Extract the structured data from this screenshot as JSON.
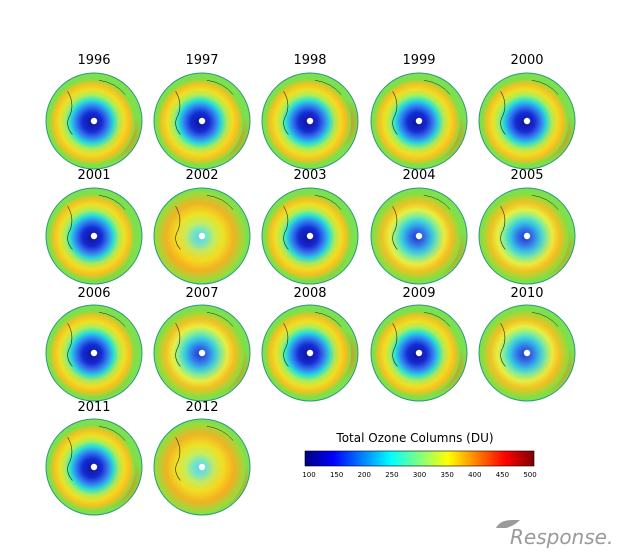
{
  "panels": [
    {
      "year": "1996",
      "hole": "large",
      "hole_color": "#1432e6",
      "high_sector": "lower-right"
    },
    {
      "year": "1997",
      "hole": "large",
      "hole_color": "#1432e6",
      "high_sector": "lower-right"
    },
    {
      "year": "1998",
      "hole": "large",
      "hole_color": "#0a1ee0",
      "high_sector": "right"
    },
    {
      "year": "1999",
      "hole": "large",
      "hole_color": "#1432e6",
      "high_sector": "lower-right"
    },
    {
      "year": "2000",
      "hole": "large",
      "hole_color": "#1432e6",
      "high_sector": "lower-right"
    },
    {
      "year": "2001",
      "hole": "large",
      "hole_color": "#1432e6",
      "high_sector": "lower"
    },
    {
      "year": "2002",
      "hole": "small",
      "hole_color": "#40b0ff",
      "high_sector": "lower-left"
    },
    {
      "year": "2003",
      "hole": "large",
      "hole_color": "#1e50f0",
      "high_sector": "lower"
    },
    {
      "year": "2004",
      "hole": "medium",
      "hole_color": "#2a70f5",
      "high_sector": "lower-right"
    },
    {
      "year": "2005",
      "hole": "medium",
      "hole_color": "#2a70f5",
      "high_sector": "lower-right"
    },
    {
      "year": "2006",
      "hole": "large",
      "hole_color": "#0a1ee0",
      "high_sector": "lower"
    },
    {
      "year": "2007",
      "hole": "medium",
      "hole_color": "#1e50f0",
      "high_sector": "lower-right"
    },
    {
      "year": "2008",
      "hole": "large",
      "hole_color": "#0a1ee0",
      "high_sector": "right"
    },
    {
      "year": "2009",
      "hole": "large",
      "hole_color": "#1432e6",
      "high_sector": "lower-right"
    },
    {
      "year": "2010",
      "hole": "medium",
      "hole_color": "#1e50f0",
      "high_sector": "lower-right"
    },
    {
      "year": "2011",
      "hole": "large",
      "hole_color": "#0a1ee0",
      "high_sector": "lower-right"
    },
    {
      "year": "2012",
      "hole": "small",
      "hole_color": "#30a0ff",
      "high_sector": "lower-right"
    }
  ],
  "colorbar": {
    "title": "Total Ozone Columns (DU)",
    "ticks": [
      "100",
      "150",
      "200",
      "250",
      "300",
      "350",
      "400",
      "450",
      "500"
    ],
    "range": [
      100,
      500
    ],
    "colors": [
      "#000080",
      "#0000ff",
      "#0080ff",
      "#00ffff",
      "#80ff80",
      "#ffff00",
      "#ff8000",
      "#ff0000",
      "#800000"
    ]
  },
  "watermark": "Response."
}
